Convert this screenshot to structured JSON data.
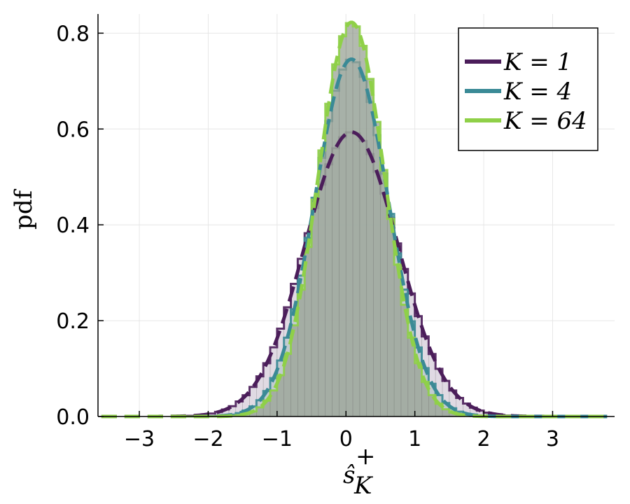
{
  "chart_data": {
    "type": "histogram-with-density",
    "title": "",
    "xlabel": "ŝ",
    "xlabel_sup": "+",
    "xlabel_sub": "K",
    "ylabel": "pdf",
    "xlim": [
      -3.6,
      3.9
    ],
    "ylim": [
      0,
      0.84
    ],
    "xticks": [
      -3,
      -2,
      -1,
      0,
      1,
      2,
      3
    ],
    "xtick_labels": [
      "−3",
      "−2",
      "−1",
      "0",
      "1",
      "2",
      "3"
    ],
    "yticks": [
      0,
      0.2,
      0.4,
      0.6,
      0.8
    ],
    "ytick_labels": [
      "0.0",
      "0.2",
      "0.4",
      "0.6",
      "0.8"
    ],
    "grid": true,
    "legend_position": "top-right",
    "series": [
      {
        "name": "K = 1",
        "legend_label": "K = 1",
        "color": "#4b1d5a",
        "mean": 0.08,
        "sd": 0.672
      },
      {
        "name": "K = 4",
        "legend_label": "K = 4",
        "color": "#3a8a96",
        "mean": 0.08,
        "sd": 0.535
      },
      {
        "name": "K = 64",
        "legend_label": "K = 64",
        "color": "#8fd048",
        "mean": 0.08,
        "sd": 0.485
      }
    ],
    "histogram_bin_width": 0.1,
    "histogram_range": [
      -2.4,
      2.6
    ]
  }
}
